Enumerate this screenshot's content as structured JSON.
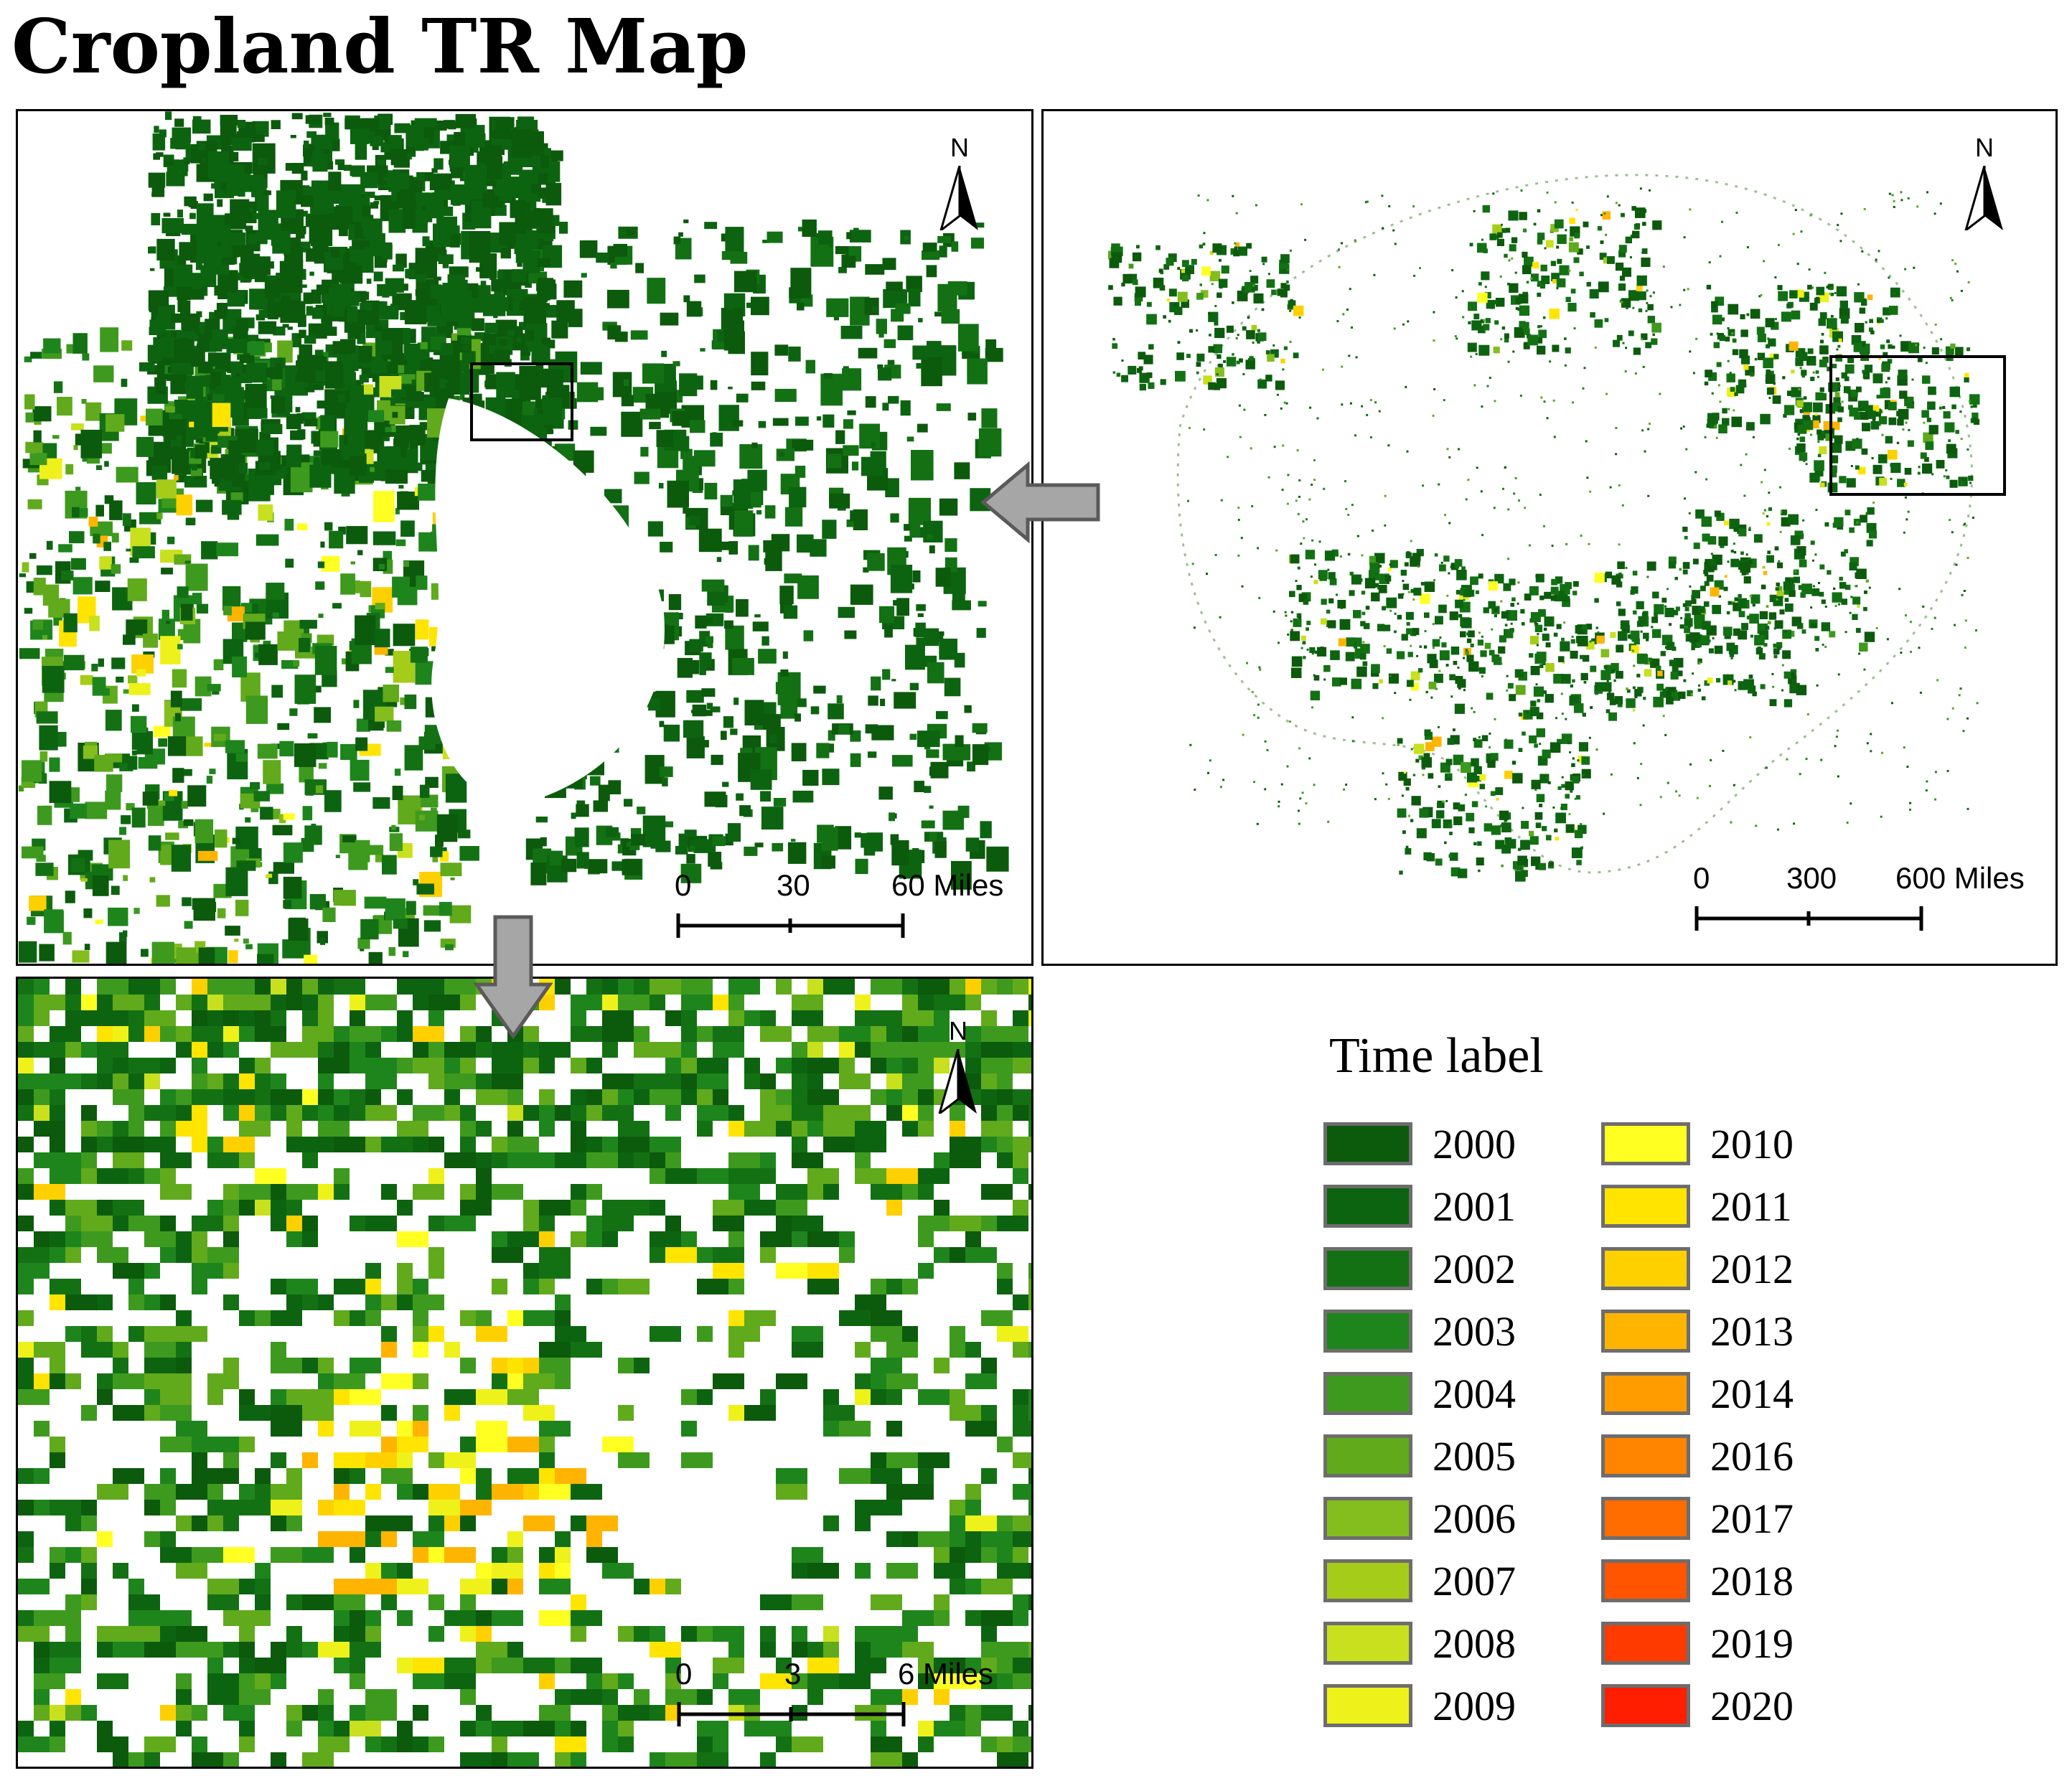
{
  "title": "Cropland TR Map",
  "north_label": "N",
  "panels": {
    "left": {
      "scale": {
        "ticks": [
          "0",
          "30",
          "60 Miles"
        ]
      }
    },
    "right": {
      "scale": {
        "ticks": [
          "0",
          "300",
          "600 Miles"
        ]
      }
    },
    "bottom": {
      "scale": {
        "ticks": [
          "0",
          "3",
          "6 Miles"
        ]
      }
    }
  },
  "legend": {
    "title": "Time label",
    "items": [
      {
        "year": "2000",
        "color": "#0c5a0c"
      },
      {
        "year": "2001",
        "color": "#0d6410"
      },
      {
        "year": "2002",
        "color": "#137114"
      },
      {
        "year": "2003",
        "color": "#1e851c"
      },
      {
        "year": "2004",
        "color": "#3e9a1e"
      },
      {
        "year": "2005",
        "color": "#60aa1c"
      },
      {
        "year": "2006",
        "color": "#84bd1e"
      },
      {
        "year": "2007",
        "color": "#a6cc1a"
      },
      {
        "year": "2008",
        "color": "#c8e01e"
      },
      {
        "year": "2009",
        "color": "#eef21a"
      },
      {
        "year": "2010",
        "color": "#ffff22"
      },
      {
        "year": "2011",
        "color": "#ffe400"
      },
      {
        "year": "2012",
        "color": "#ffd000"
      },
      {
        "year": "2013",
        "color": "#ffb400"
      },
      {
        "year": "2014",
        "color": "#ff9d00"
      },
      {
        "year": "2016",
        "color": "#ff8400"
      },
      {
        "year": "2017",
        "color": "#ff6c00"
      },
      {
        "year": "2018",
        "color": "#ff5400"
      },
      {
        "year": "2019",
        "color": "#ff3a00"
      },
      {
        "year": "2020",
        "color": "#ff1e00"
      }
    ]
  }
}
